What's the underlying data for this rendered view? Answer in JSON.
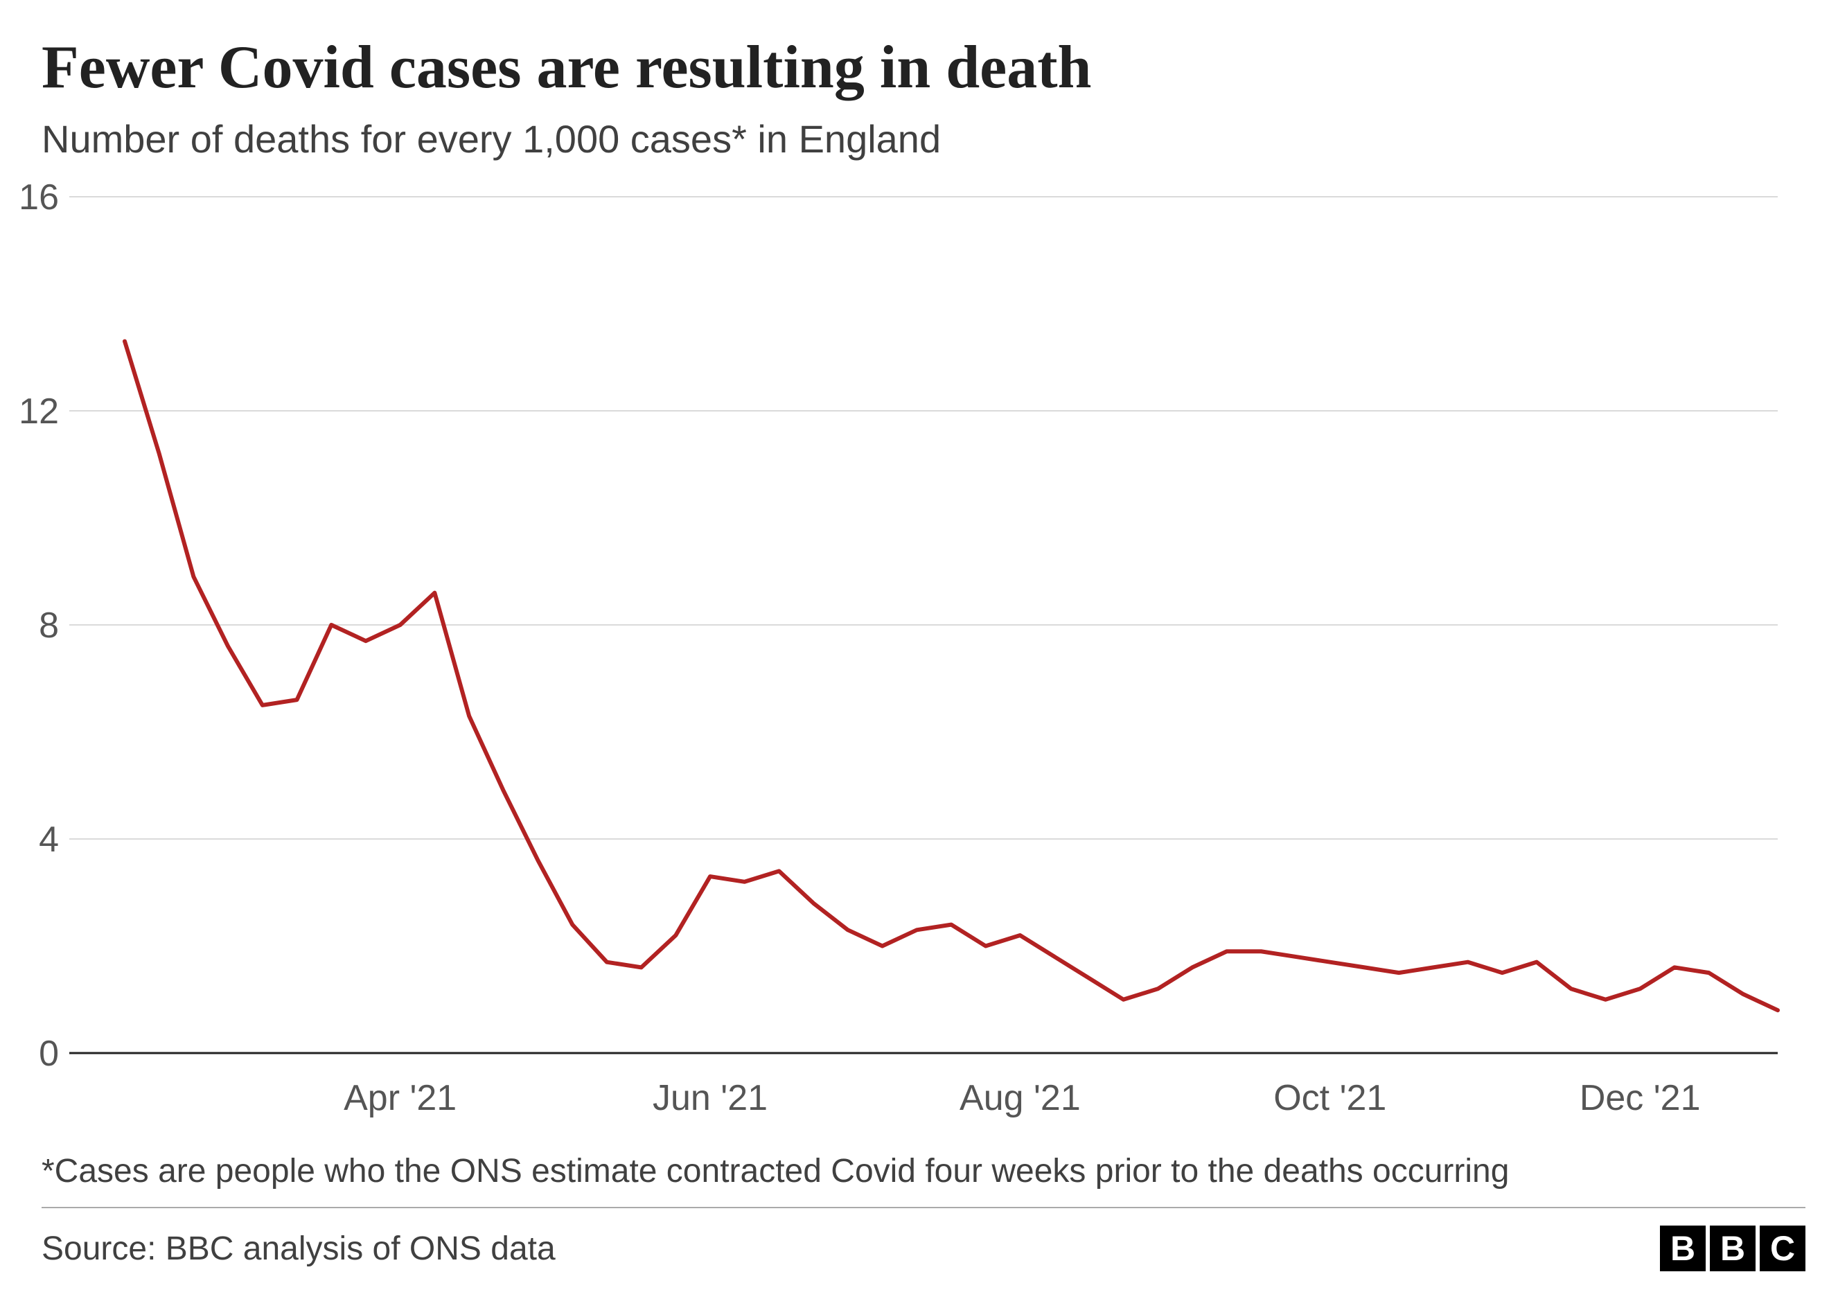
{
  "title": "Fewer Covid cases are resulting in death",
  "subtitle": "Number of deaths for every 1,000 cases* in England",
  "footnote": "*Cases are people who the ONS estimate contracted Covid four weeks prior to the deaths occurring",
  "source": "Source: BBC analysis of ONS data",
  "logo_blocks": [
    "B",
    "B",
    "C"
  ],
  "chart": {
    "type": "line",
    "background_color": "#ffffff",
    "grid_color": "#dadada",
    "axis_color": "#222222",
    "tick_label_color": "#555555",
    "title_fontsize": 88,
    "subtitle_fontsize": 56,
    "footnote_fontsize": 48,
    "source_fontsize": 48,
    "tick_fontsize": 52,
    "logo_block_size": 66,
    "logo_fontsize": 50,
    "ylim": [
      0,
      16
    ],
    "ytick_step": 4,
    "ytick_labels": [
      "0",
      "4",
      "8",
      "12",
      "16"
    ],
    "x_domain": [
      0,
      48
    ],
    "x_ticks": [
      {
        "pos": 8,
        "label": "Apr '21"
      },
      {
        "pos": 17,
        "label": "Jun '21"
      },
      {
        "pos": 26,
        "label": "Aug '21"
      },
      {
        "pos": 35,
        "label": "Oct '21"
      },
      {
        "pos": 44,
        "label": "Dec '21"
      }
    ],
    "series": [
      {
        "name": "deaths_per_1000",
        "color": "#b22222",
        "line_width": 6,
        "data": [
          [
            0,
            13.3
          ],
          [
            1,
            11.2
          ],
          [
            2,
            8.9
          ],
          [
            3,
            7.6
          ],
          [
            4,
            6.5
          ],
          [
            5,
            6.6
          ],
          [
            6,
            8.0
          ],
          [
            7,
            7.7
          ],
          [
            8,
            8.0
          ],
          [
            9,
            8.6
          ],
          [
            10,
            6.3
          ],
          [
            11,
            4.9
          ],
          [
            12,
            3.6
          ],
          [
            13,
            2.4
          ],
          [
            14,
            1.7
          ],
          [
            15,
            1.6
          ],
          [
            16,
            2.2
          ],
          [
            17,
            3.3
          ],
          [
            18,
            3.2
          ],
          [
            19,
            3.4
          ],
          [
            20,
            2.8
          ],
          [
            21,
            2.3
          ],
          [
            22,
            2.0
          ],
          [
            23,
            2.3
          ],
          [
            24,
            2.4
          ],
          [
            25,
            2.0
          ],
          [
            26,
            2.2
          ],
          [
            27,
            1.8
          ],
          [
            28,
            1.4
          ],
          [
            29,
            1.0
          ],
          [
            30,
            1.2
          ],
          [
            31,
            1.6
          ],
          [
            32,
            1.9
          ],
          [
            33,
            1.9
          ],
          [
            34,
            1.8
          ],
          [
            35,
            1.7
          ],
          [
            36,
            1.6
          ],
          [
            37,
            1.5
          ],
          [
            38,
            1.6
          ],
          [
            39,
            1.7
          ],
          [
            40,
            1.5
          ],
          [
            41,
            1.7
          ],
          [
            42,
            1.2
          ],
          [
            43,
            1.0
          ],
          [
            44,
            1.2
          ],
          [
            45,
            1.6
          ],
          [
            46,
            1.5
          ],
          [
            47,
            1.1
          ],
          [
            48,
            0.8
          ]
        ]
      }
    ]
  }
}
